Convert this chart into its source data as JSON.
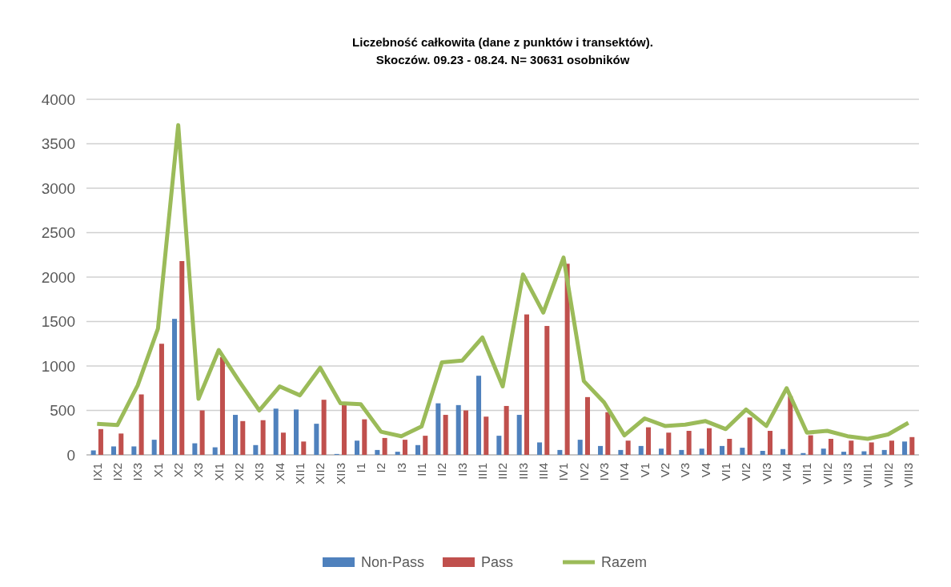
{
  "chart_data": {
    "type": "bar",
    "title": "Liczebność całkowita (dane z punktów i transektów).\nSkoczów. 09.23 - 08.24. N= 30631 osobników",
    "categories": [
      "IX1",
      "IX2",
      "IX3",
      "X1",
      "X2",
      "X3",
      "XI1",
      "XI2",
      "XI3",
      "XI4",
      "XII1",
      "XII2",
      "XII3",
      "I1",
      "I2",
      "I3",
      "II1",
      "II2",
      "II3",
      "III1",
      "III2",
      "III3",
      "III4",
      "IV1",
      "IV2",
      "IV3",
      "IV4",
      "V1",
      "V2",
      "V3",
      "V4",
      "VI1",
      "VI2",
      "VI3",
      "VI4",
      "VII1",
      "VII2",
      "VII3",
      "VIII1",
      "VIII2",
      "VIII3"
    ],
    "series": [
      {
        "name": "Non-Pass",
        "color": "#4f81bd",
        "values": [
          50,
          95,
          95,
          170,
          1530,
          130,
          85,
          450,
          110,
          520,
          510,
          350,
          10,
          160,
          55,
          35,
          110,
          580,
          560,
          890,
          215,
          450,
          140,
          55,
          170,
          100,
          55,
          100,
          70,
          55,
          70,
          100,
          80,
          45,
          65,
          20,
          70,
          35,
          40,
          55,
          150
        ]
      },
      {
        "name": "Pass",
        "color": "#c0504d",
        "values": [
          290,
          240,
          680,
          1250,
          2180,
          500,
          1100,
          380,
          390,
          250,
          150,
          620,
          560,
          400,
          190,
          170,
          215,
          450,
          500,
          430,
          550,
          1580,
          1450,
          2150,
          650,
          480,
          160,
          310,
          250,
          270,
          300,
          180,
          420,
          270,
          660,
          220,
          180,
          160,
          140,
          160,
          200
        ]
      },
      {
        "name": "Razem",
        "type": "line",
        "color": "#9bbb59",
        "values": [
          350,
          335,
          780,
          1420,
          3710,
          630,
          1180,
          830,
          500,
          770,
          670,
          980,
          580,
          570,
          260,
          210,
          320,
          1040,
          1060,
          1320,
          770,
          2030,
          1600,
          2220,
          830,
          590,
          220,
          410,
          325,
          340,
          380,
          290,
          510,
          325,
          750,
          250,
          270,
          210,
          180,
          230,
          360
        ]
      }
    ],
    "ylim": [
      0,
      4000
    ],
    "yticks": [
      0,
      500,
      1000,
      1500,
      2000,
      2500,
      3000,
      3500,
      4000
    ],
    "grid": "y",
    "legend": "bottom"
  }
}
